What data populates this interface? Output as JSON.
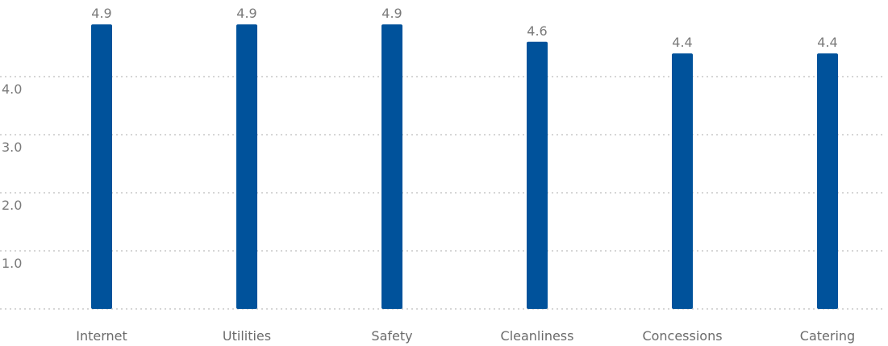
{
  "chart_data": {
    "type": "bar",
    "categories": [
      "Internet",
      "Utilities",
      "Safety",
      "Cleanliness",
      "Concessions",
      "Catering"
    ],
    "values": [
      4.9,
      4.9,
      4.9,
      4.6,
      4.4,
      4.4
    ],
    "value_labels": [
      "4.9",
      "4.9",
      "4.9",
      "4.6",
      "4.4",
      "4.4"
    ],
    "title": "",
    "xlabel": "",
    "ylabel": "",
    "ylim": [
      0,
      5
    ],
    "yticks": [
      1.0,
      2.0,
      3.0,
      4.0
    ],
    "ytick_labels": [
      "1.0",
      "2.0",
      "3.0",
      "4.0"
    ],
    "grid": true,
    "legend": "none",
    "bar_color": "#00529b"
  }
}
